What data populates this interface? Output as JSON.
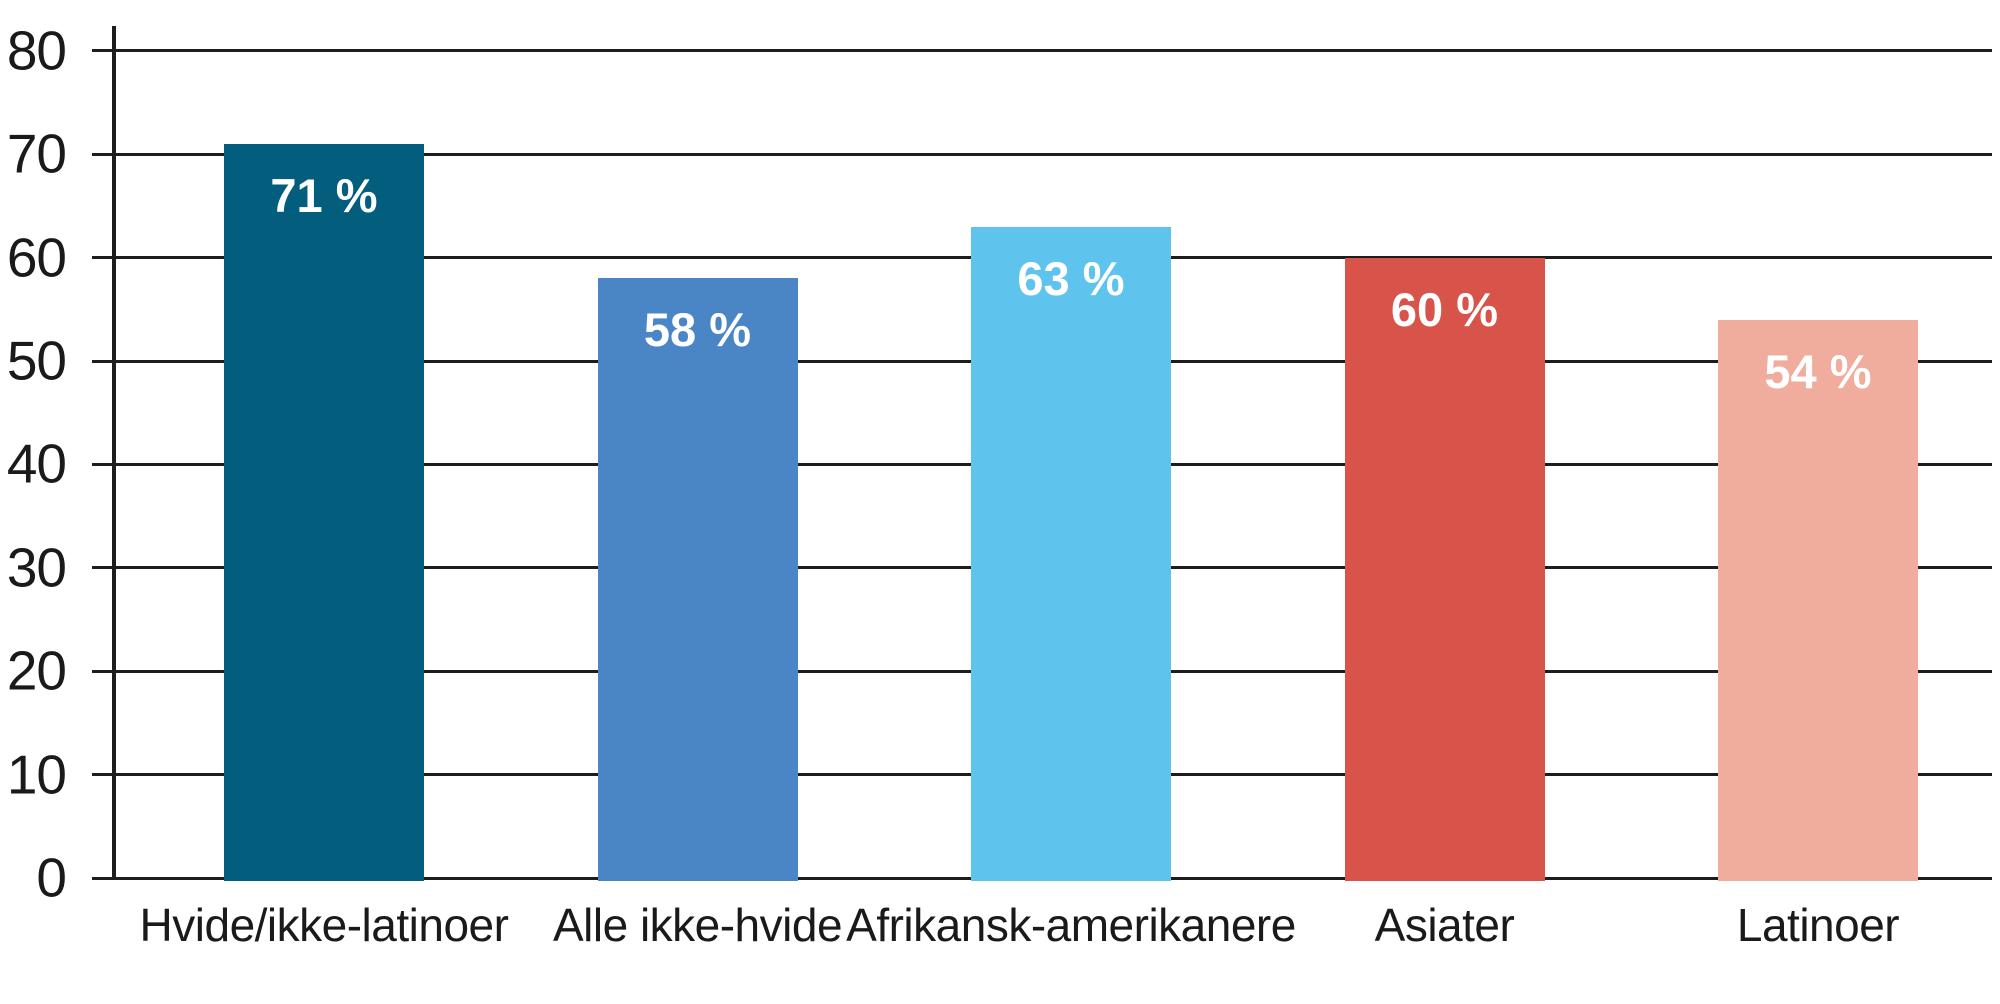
{
  "chart_data": {
    "type": "bar",
    "categories": [
      "Hvide/ikke-latinoer",
      "Alle ikke-hvide",
      "Afrikansk-amerikanere",
      "Asiater",
      "Latinoer"
    ],
    "values": [
      71,
      58,
      63,
      60,
      54
    ],
    "value_labels": [
      "71 %",
      "58 %",
      "63 %",
      "60 %",
      "54 %"
    ],
    "bar_colors": [
      "#035e7d",
      "#4a86c6",
      "#5ec4ed",
      "#d8544a",
      "#f0ac9c"
    ],
    "yticks": [
      0,
      10,
      20,
      30,
      40,
      50,
      60,
      70,
      80
    ],
    "ylim": [
      0,
      80
    ],
    "grid": "horizontal",
    "legend": "none",
    "axis_color": "#1d1d1b",
    "tick_label_color": "#1a1a1a",
    "value_label_color": "#ffffff"
  }
}
